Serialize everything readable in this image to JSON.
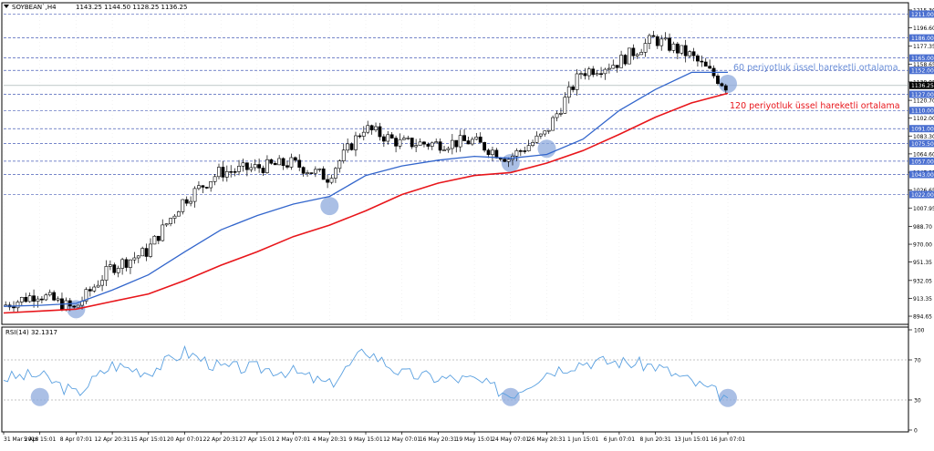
{
  "header": {
    "symbol": "SOYBEAN`,H4",
    "ohlc": "1143.25 1144.50 1128.25 1136.25"
  },
  "colors": {
    "ema60": "#3366cc",
    "ema120": "#e8161b",
    "rsi": "#5aa0e0",
    "hline": "#4a5fb8",
    "circle": "#8eaadc",
    "price_tag": "#000000",
    "blue_tag": "#4a6fd0"
  },
  "annotations": {
    "ema60_label": "60 periyotluk üssel hareketli ortalama",
    "ema120_label": "120 periyotluk üssel hareketli ortalama"
  },
  "chart_data": [
    {
      "type": "line",
      "title": "SOYBEAN`,H4",
      "x": [
        "31 Mar 2016",
        "5 Apr 15:01",
        "8 Apr 07:01",
        "12 Apr 20:31",
        "15 Apr 15:01",
        "20 Apr 07:01",
        "22 Apr 20:31",
        "27 Apr 15:01",
        "2 May 07:01",
        "4 May 20:31",
        "9 May 15:01",
        "12 May 07:01",
        "16 May 20:31",
        "19 May 15:01",
        "24 May 07:01",
        "26 May 20:31",
        "1 Jun 15:01",
        "6 Jun 07:01",
        "8 Jun 20:31",
        "13 Jun 15:01",
        "16 Jun 07:01"
      ],
      "y_ticks": [
        "1215.30",
        "1196.60",
        "1177.35",
        "1158.65",
        "1139.95",
        "1120.70",
        "1102.00",
        "1083.30",
        "1064.60",
        "1045.35",
        "1026.65",
        "1007.95",
        "988.70",
        "970.00",
        "951.35",
        "932.05",
        "913.35",
        "894.65"
      ],
      "ylim": [
        888,
        1220
      ],
      "price_tags": [
        {
          "label": "1211.00",
          "value": 1211.0,
          "style": "blue"
        },
        {
          "label": "1186.00",
          "value": 1186.0,
          "style": "blue"
        },
        {
          "label": "1165.00",
          "value": 1165.0,
          "style": "blue"
        },
        {
          "label": "1152.00",
          "value": 1152.0,
          "style": "blue"
        },
        {
          "label": "1136.25",
          "value": 1136.25,
          "style": "black"
        },
        {
          "label": "1127.00",
          "value": 1127.0,
          "style": "blue"
        },
        {
          "label": "1110.00",
          "value": 1110.0,
          "style": "blue"
        },
        {
          "label": "1091.00",
          "value": 1091.0,
          "style": "blue"
        },
        {
          "label": "1075.50",
          "value": 1075.5,
          "style": "blue"
        },
        {
          "label": "1057.00",
          "value": 1057.0,
          "style": "blue"
        },
        {
          "label": "1043.00",
          "value": 1043.0,
          "style": "blue"
        },
        {
          "label": "1022.00",
          "value": 1022.0,
          "style": "blue"
        }
      ],
      "series": [
        {
          "name": "Price",
          "values": [
            905,
            918,
            902,
            945,
            962,
            1015,
            1045,
            1050,
            1055,
            1040,
            1092,
            1076,
            1075,
            1078,
            1060,
            1085,
            1150,
            1160,
            1185,
            1168,
            1136
          ]
        },
        {
          "name": "60 periyotluk üssel hareketli ortalama",
          "values": [
            905,
            906,
            908,
            922,
            938,
            962,
            985,
            1000,
            1012,
            1020,
            1042,
            1052,
            1058,
            1062,
            1060,
            1064,
            1080,
            1110,
            1132,
            1150,
            1150
          ]
        },
        {
          "name": "120 periyotluk üssel hareketli ortalama",
          "values": [
            898,
            900,
            902,
            910,
            918,
            932,
            948,
            962,
            978,
            990,
            1005,
            1022,
            1034,
            1042,
            1045,
            1055,
            1068,
            1085,
            1103,
            1118,
            1128
          ]
        }
      ],
      "highlight_points": [
        {
          "x": "8 Apr 07:01",
          "y": 902
        },
        {
          "x": "4 May 20:31",
          "y": 1010
        },
        {
          "x": "24 May 07:01",
          "y": 1055
        },
        {
          "x": "26 May 20:31",
          "y": 1070
        },
        {
          "x": "16 Jun 07:01",
          "y": 1138
        }
      ]
    },
    {
      "type": "line",
      "title": "RSI(14) 32.1317",
      "x": [
        "31 Mar 2016",
        "5 Apr 15:01",
        "8 Apr 07:01",
        "12 Apr 20:31",
        "15 Apr 15:01",
        "20 Apr 07:01",
        "22 Apr 20:31",
        "27 Apr 15:01",
        "2 May 07:01",
        "4 May 20:31",
        "9 May 15:01",
        "12 May 07:01",
        "16 May 20:31",
        "19 May 15:01",
        "24 May 07:01",
        "26 May 20:31",
        "1 Jun 15:01",
        "6 Jun 07:01",
        "8 Jun 20:31",
        "13 Jun 15:01",
        "16 Jun 07:01"
      ],
      "y_ticks": [
        "100",
        "70",
        "30",
        "0"
      ],
      "ylim": [
        0,
        100
      ],
      "levels": [
        70,
        30
      ],
      "series": [
        {
          "name": "RSI(14)",
          "values": [
            52,
            55,
            36,
            65,
            58,
            78,
            62,
            62,
            58,
            45,
            80,
            56,
            52,
            50,
            35,
            58,
            68,
            68,
            64,
            48,
            32
          ]
        }
      ],
      "highlight_points": [
        {
          "x": "5 Apr 15:01",
          "y": 33
        },
        {
          "x": "24 May 07:01",
          "y": 33
        },
        {
          "x": "16 Jun 07:01",
          "y": 32
        }
      ]
    }
  ]
}
